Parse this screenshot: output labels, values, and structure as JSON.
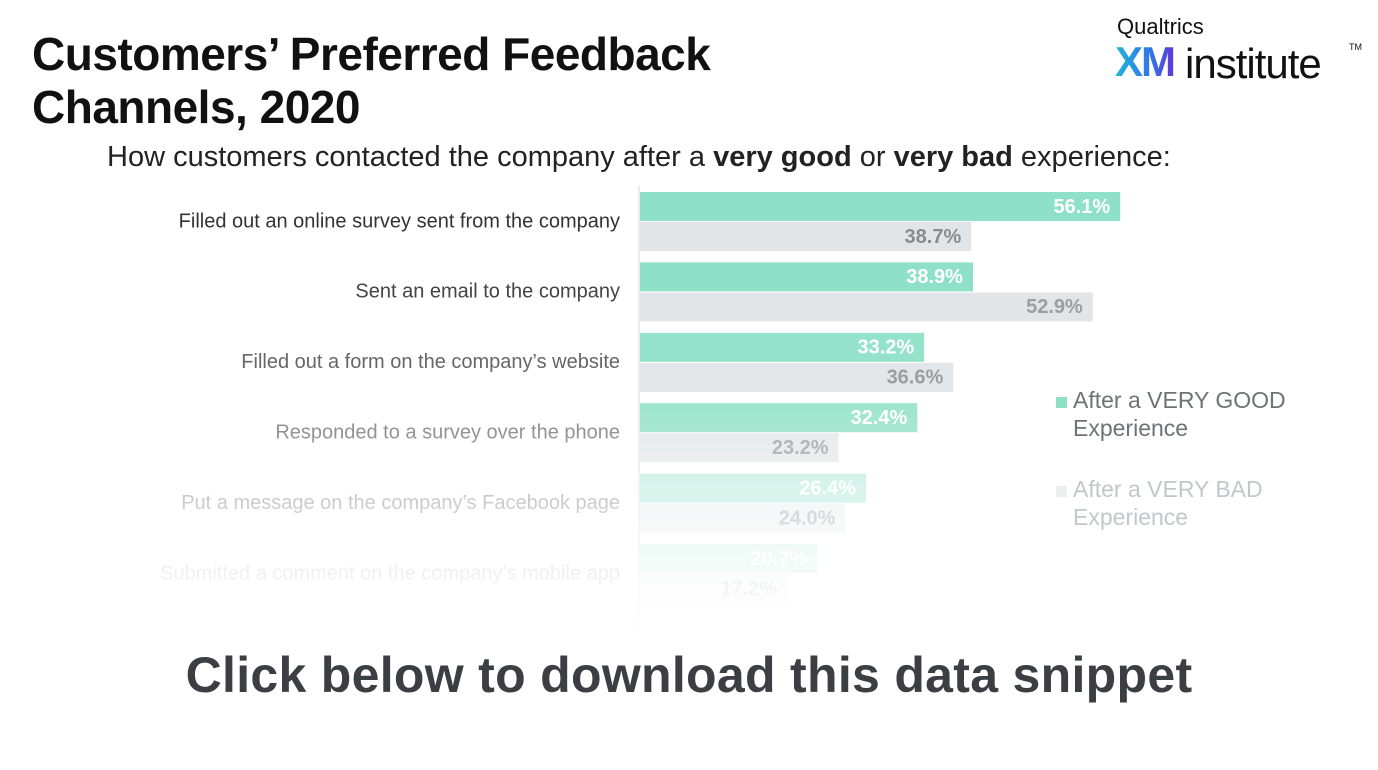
{
  "header": {
    "title": "Customers’ Preferred Feedback Channels, 2020",
    "subtitle_before": "How customers contacted the company after a ",
    "subtitle_good": "very good",
    "subtitle_or": " or ",
    "subtitle_bad": "very bad",
    "subtitle_after": " experience:"
  },
  "logo": {
    "top": "Qualtrics",
    "xm": "XM",
    "institute": "institute",
    "tm": "TM"
  },
  "legend": {
    "good": "After a VERY GOOD Experience",
    "bad": "After a VERY BAD Experience"
  },
  "cta": {
    "text": "Click below to download this data snippet"
  },
  "chart_data": {
    "type": "bar",
    "orientation": "horizontal",
    "categories": [
      "Filled out an online survey sent from the company",
      "Sent an email to the company",
      "Filled out a form on the company’s website",
      "Responded to a survey over the phone",
      "Put a message on the company’s Facebook page",
      "Submitted a comment on the company’s mobile app"
    ],
    "series": [
      {
        "name": "After a VERY GOOD Experience",
        "values": [
          56.1,
          38.9,
          33.2,
          32.4,
          26.4,
          20.7
        ],
        "color": "#8ee0c6"
      },
      {
        "name": "After a VERY BAD Experience",
        "values": [
          38.7,
          52.9,
          36.6,
          23.2,
          24.0,
          17.2
        ],
        "color": "#e2e5e8"
      }
    ],
    "value_format": "%",
    "xlim": [
      0,
      100
    ],
    "legend_position": "right",
    "grid": false
  }
}
